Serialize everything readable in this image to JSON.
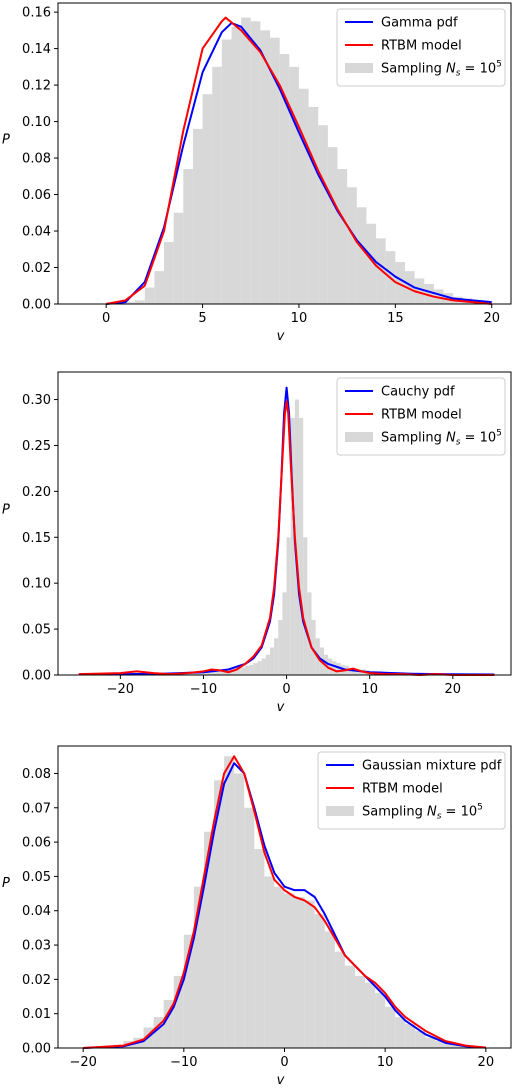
{
  "chart_data": [
    {
      "type": "line",
      "xlabel": "v",
      "ylabel": "P",
      "xlim": [
        -2.5,
        21
      ],
      "ylim": [
        0,
        0.165
      ],
      "xticks": [
        0,
        5,
        10,
        15,
        20
      ],
      "yticks": [
        0.0,
        0.02,
        0.04,
        0.06,
        0.08,
        0.1,
        0.12,
        0.14,
        0.16
      ],
      "ytick_decimals": 2,
      "legend_position": "upper-right",
      "legend": [
        "Gamma pdf",
        "RTBM model",
        "Sampling N_s = 10^5"
      ],
      "series": [
        {
          "name": "Gamma pdf",
          "color": "#0000ff",
          "x": [
            0,
            1,
            2,
            3,
            4,
            5,
            6,
            6.5,
            7,
            8,
            9,
            10,
            11,
            12,
            13,
            14,
            15,
            16,
            17,
            18,
            19,
            20
          ],
          "y": [
            0.0,
            0.001,
            0.012,
            0.042,
            0.087,
            0.127,
            0.149,
            0.154,
            0.152,
            0.139,
            0.118,
            0.094,
            0.071,
            0.051,
            0.035,
            0.023,
            0.015,
            0.009,
            0.006,
            0.003,
            0.002,
            0.001
          ]
        },
        {
          "name": "RTBM model",
          "color": "#ff0000",
          "x": [
            0,
            1,
            2,
            3,
            4,
            5,
            6,
            6.2,
            7,
            8,
            9,
            10,
            11,
            12,
            13,
            14,
            15,
            16,
            17,
            18,
            19,
            20
          ],
          "y": [
            0.0,
            0.002,
            0.01,
            0.04,
            0.095,
            0.14,
            0.155,
            0.157,
            0.15,
            0.138,
            0.12,
            0.097,
            0.073,
            0.052,
            0.034,
            0.021,
            0.012,
            0.007,
            0.004,
            0.002,
            0.001,
            0.0
          ]
        }
      ],
      "histogram": {
        "name": "Sampling N_s = 10^5",
        "color": "#d8d8d8",
        "bin_start": 0,
        "bin_width": 0.5,
        "values": [
          0.0,
          0.0,
          0.001,
          0.002,
          0.009,
          0.018,
          0.034,
          0.05,
          0.074,
          0.096,
          0.115,
          0.13,
          0.145,
          0.152,
          0.157,
          0.155,
          0.15,
          0.146,
          0.137,
          0.13,
          0.118,
          0.108,
          0.098,
          0.086,
          0.074,
          0.064,
          0.053,
          0.044,
          0.036,
          0.029,
          0.023,
          0.018,
          0.014,
          0.011,
          0.008,
          0.006,
          0.004,
          0.003,
          0.002,
          0.001
        ]
      }
    },
    {
      "type": "line",
      "xlabel": "v",
      "ylabel": "P",
      "xlim": [
        -27.5,
        27
      ],
      "ylim": [
        0,
        0.33
      ],
      "xticks": [
        -20,
        -10,
        0,
        10,
        20
      ],
      "yticks": [
        0.0,
        0.05,
        0.1,
        0.15,
        0.2,
        0.25,
        0.3
      ],
      "ytick_decimals": 2,
      "legend_position": "upper-right",
      "legend": [
        "Cauchy pdf",
        "RTBM model",
        "Sampling N_s = 10^5"
      ],
      "series": [
        {
          "name": "Cauchy pdf",
          "color": "#0000ff",
          "x": [
            -25,
            -20,
            -15,
            -10,
            -7,
            -5,
            -4,
            -3,
            -2,
            -1.5,
            -1,
            -0.6,
            -0.3,
            0,
            0.3,
            0.6,
            1,
            1.5,
            2,
            3,
            4,
            5,
            7,
            10,
            15,
            20,
            25
          ],
          "y": [
            0.0005,
            0.0008,
            0.0014,
            0.003,
            0.006,
            0.012,
            0.018,
            0.03,
            0.058,
            0.088,
            0.145,
            0.22,
            0.285,
            0.313,
            0.285,
            0.22,
            0.145,
            0.088,
            0.058,
            0.03,
            0.018,
            0.012,
            0.006,
            0.003,
            0.0014,
            0.0008,
            0.0005
          ]
        },
        {
          "name": "RTBM model",
          "color": "#ff0000",
          "x": [
            -25,
            -20,
            -18,
            -16,
            -14,
            -12,
            -10,
            -9,
            -8,
            -7,
            -6,
            -5,
            -4,
            -3,
            -2,
            -1.5,
            -1,
            -0.5,
            -0.2,
            0,
            0.2,
            0.5,
            1,
            1.5,
            2,
            3,
            4,
            5,
            6,
            7,
            8,
            9,
            10,
            12,
            14,
            16,
            18,
            20,
            22,
            25
          ],
          "y": [
            0.001,
            0.002,
            0.004,
            0.002,
            0.001,
            0.002,
            0.004,
            0.006,
            0.005,
            0.003,
            0.006,
            0.012,
            0.02,
            0.032,
            0.062,
            0.095,
            0.15,
            0.235,
            0.285,
            0.298,
            0.285,
            0.23,
            0.15,
            0.095,
            0.062,
            0.03,
            0.016,
            0.008,
            0.004,
            0.005,
            0.007,
            0.004,
            0.002,
            0.001,
            0.001,
            0.0,
            0.001,
            0.0,
            0.0,
            0.0
          ]
        }
      ],
      "histogram": {
        "name": "Sampling N_s = 10^5",
        "color": "#d8d8d8",
        "bin_start": -25,
        "bin_width": 0.5,
        "values": [
          0.001,
          0.001,
          0.001,
          0.001,
          0.001,
          0.001,
          0.001,
          0.001,
          0.001,
          0.001,
          0.001,
          0.001,
          0.001,
          0.001,
          0.001,
          0.001,
          0.001,
          0.001,
          0.001,
          0.001,
          0.002,
          0.002,
          0.002,
          0.002,
          0.002,
          0.002,
          0.002,
          0.002,
          0.003,
          0.003,
          0.003,
          0.003,
          0.004,
          0.004,
          0.004,
          0.005,
          0.006,
          0.006,
          0.007,
          0.008,
          0.01,
          0.011,
          0.013,
          0.015,
          0.018,
          0.022,
          0.03,
          0.04,
          0.06,
          0.09,
          0.15,
          0.28,
          0.3,
          0.28,
          0.15,
          0.09,
          0.06,
          0.04,
          0.03,
          0.022,
          0.018,
          0.015,
          0.013,
          0.011,
          0.01,
          0.008,
          0.007,
          0.006,
          0.006,
          0.005,
          0.004,
          0.004,
          0.004,
          0.003,
          0.003,
          0.003,
          0.003,
          0.002,
          0.002,
          0.002,
          0.002,
          0.002,
          0.002,
          0.002,
          0.002,
          0.001,
          0.001,
          0.001,
          0.001,
          0.001,
          0.001,
          0.001,
          0.001,
          0.001,
          0.001,
          0.001,
          0.001,
          0.001,
          0.001,
          0.001
        ]
      }
    },
    {
      "type": "line",
      "xlabel": "v",
      "ylabel": "P",
      "xlim": [
        -22.5,
        22.5
      ],
      "ylim": [
        0,
        0.088
      ],
      "xticks": [
        -20,
        -10,
        0,
        10,
        20
      ],
      "yticks": [
        0.0,
        0.01,
        0.02,
        0.03,
        0.04,
        0.05,
        0.06,
        0.07,
        0.08
      ],
      "ytick_decimals": 2,
      "legend_position": "upper-right",
      "legend": [
        "Gaussian mixture pdf",
        "RTBM model",
        "Sampling N_s = 10^5"
      ],
      "series": [
        {
          "name": "Gaussian mixture pdf",
          "color": "#0000ff",
          "x": [
            -20,
            -16,
            -14,
            -12,
            -11,
            -10,
            -9,
            -8,
            -7,
            -6,
            -5,
            -4,
            -3,
            -2,
            -1,
            0,
            1,
            2,
            3,
            4,
            5,
            6,
            7,
            8,
            9,
            10,
            11,
            12,
            14,
            16,
            18,
            20
          ],
          "y": [
            0.0,
            0.0005,
            0.002,
            0.007,
            0.012,
            0.02,
            0.032,
            0.047,
            0.063,
            0.077,
            0.083,
            0.08,
            0.07,
            0.059,
            0.051,
            0.047,
            0.046,
            0.046,
            0.044,
            0.039,
            0.033,
            0.027,
            0.024,
            0.021,
            0.018,
            0.015,
            0.011,
            0.008,
            0.004,
            0.0015,
            0.0005,
            0.0001
          ]
        },
        {
          "name": "RTBM model",
          "color": "#ff0000",
          "x": [
            -20,
            -16,
            -14,
            -12,
            -11,
            -10,
            -9,
            -8,
            -7,
            -6,
            -5,
            -4,
            -3,
            -2,
            -1,
            0,
            1,
            2,
            3,
            4,
            5,
            6,
            7,
            8,
            9,
            10,
            11,
            12,
            14,
            16,
            18,
            20
          ],
          "y": [
            0.0,
            0.0007,
            0.0025,
            0.008,
            0.013,
            0.022,
            0.034,
            0.05,
            0.066,
            0.08,
            0.085,
            0.08,
            0.069,
            0.057,
            0.049,
            0.046,
            0.044,
            0.043,
            0.041,
            0.037,
            0.032,
            0.027,
            0.024,
            0.021,
            0.019,
            0.016,
            0.012,
            0.009,
            0.005,
            0.002,
            0.0007,
            0.0001
          ]
        }
      ],
      "histogram": {
        "name": "Sampling N_s = 10^5",
        "color": "#d8d8d8",
        "bin_start": -20,
        "bin_width": 1,
        "values": [
          0.0001,
          0.0003,
          0.0006,
          0.001,
          0.002,
          0.003,
          0.006,
          0.009,
          0.014,
          0.021,
          0.033,
          0.047,
          0.063,
          0.078,
          0.085,
          0.08,
          0.07,
          0.058,
          0.05,
          0.047,
          0.045,
          0.044,
          0.043,
          0.039,
          0.034,
          0.028,
          0.024,
          0.021,
          0.019,
          0.016,
          0.012,
          0.009,
          0.007,
          0.005,
          0.003,
          0.002,
          0.0015,
          0.001,
          0.0005,
          0.0002
        ]
      }
    }
  ]
}
